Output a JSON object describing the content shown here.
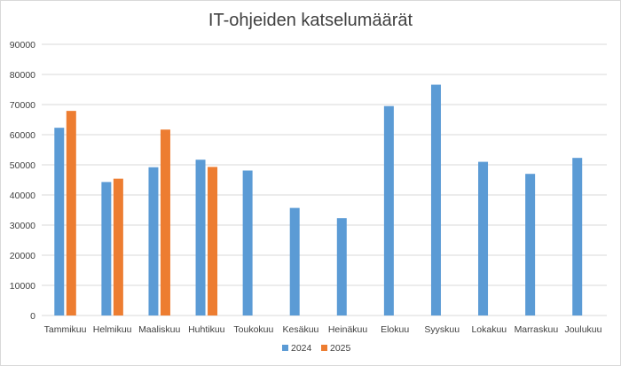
{
  "chart_data": {
    "type": "bar",
    "title": "IT-ohjeiden katselumäärät",
    "xlabel": "",
    "ylabel": "",
    "ylim": [
      0,
      90000
    ],
    "yticks": [
      0,
      10000,
      20000,
      30000,
      40000,
      50000,
      60000,
      70000,
      80000,
      90000
    ],
    "grid": true,
    "legend_position": "bottom",
    "categories": [
      "Tammikuu",
      "Helmikuu",
      "Maaliskuu",
      "Huhtikuu",
      "Toukokuu",
      "Kesäkuu",
      "Heinäkuu",
      "Elokuu",
      "Syyskuu",
      "Lokakuu",
      "Marraskuu",
      "Joulukuu"
    ],
    "series": [
      {
        "name": "2024",
        "color": "#5b9bd5",
        "values": [
          62300,
          44300,
          49200,
          51700,
          48100,
          35700,
          32300,
          69500,
          76600,
          51000,
          47000,
          52300
        ]
      },
      {
        "name": "2025",
        "color": "#ed7d31",
        "values": [
          67900,
          45400,
          61700,
          49300,
          null,
          null,
          null,
          null,
          null,
          null,
          null,
          null
        ]
      }
    ]
  }
}
